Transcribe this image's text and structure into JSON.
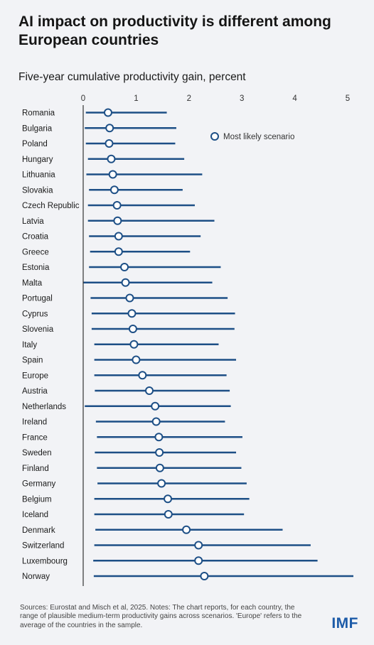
{
  "title": "AI impact on productivity is different among European countries",
  "subtitle": "Five-year cumulative productivity gain, percent",
  "footnote": "Sources: Eurostat and Misch et al, 2025. Notes: The chart reports, for each country, the range of plausible medium-term productivity gains across scenarios. 'Europe' refers to the average of the countries in the sample.",
  "logo": "IMF",
  "colors": {
    "line": "#1d4f86",
    "marker_fill": "#ffffff",
    "axis": "#333333",
    "background": "#f2f3f6"
  },
  "chart_data": {
    "type": "range-dot",
    "xlim": [
      0,
      5
    ],
    "xticks": [
      "0",
      "1",
      "2",
      "3",
      "4",
      "5"
    ],
    "legend": {
      "label": "Most likely scenario",
      "placement": "top-right"
    },
    "rows": [
      {
        "country": "Romania",
        "low": 0.05,
        "high": 1.58,
        "likely": 0.47
      },
      {
        "country": "Bulgaria",
        "low": 0.03,
        "high": 1.76,
        "likely": 0.5
      },
      {
        "country": "Poland",
        "low": 0.05,
        "high": 1.74,
        "likely": 0.49
      },
      {
        "country": "Hungary",
        "low": 0.09,
        "high": 1.91,
        "likely": 0.53
      },
      {
        "country": "Lithuania",
        "low": 0.06,
        "high": 2.25,
        "likely": 0.56
      },
      {
        "country": "Slovakia",
        "low": 0.11,
        "high": 1.88,
        "likely": 0.59
      },
      {
        "country": "Czech Republic",
        "low": 0.09,
        "high": 2.11,
        "likely": 0.64
      },
      {
        "country": "Latvia",
        "low": 0.09,
        "high": 2.48,
        "likely": 0.65
      },
      {
        "country": "Croatia",
        "low": 0.11,
        "high": 2.22,
        "likely": 0.67
      },
      {
        "country": "Greece",
        "low": 0.13,
        "high": 2.02,
        "likely": 0.67
      },
      {
        "country": "Estonia",
        "low": 0.11,
        "high": 2.6,
        "likely": 0.78
      },
      {
        "country": "Malta",
        "low": 0.0,
        "high": 2.44,
        "likely": 0.8
      },
      {
        "country": "Portugal",
        "low": 0.14,
        "high": 2.73,
        "likely": 0.88
      },
      {
        "country": "Cyprus",
        "low": 0.16,
        "high": 2.87,
        "likely": 0.92
      },
      {
        "country": "Slovenia",
        "low": 0.16,
        "high": 2.86,
        "likely": 0.94
      },
      {
        "country": "Italy",
        "low": 0.21,
        "high": 2.56,
        "likely": 0.96
      },
      {
        "country": "Spain",
        "low": 0.21,
        "high": 2.89,
        "likely": 1.0
      },
      {
        "country": "Europe",
        "low": 0.21,
        "high": 2.71,
        "likely": 1.12
      },
      {
        "country": "Austria",
        "low": 0.22,
        "high": 2.77,
        "likely": 1.25
      },
      {
        "country": "Netherlands",
        "low": 0.03,
        "high": 2.79,
        "likely": 1.36
      },
      {
        "country": "Ireland",
        "low": 0.24,
        "high": 2.68,
        "likely": 1.38
      },
      {
        "country": "France",
        "low": 0.26,
        "high": 3.01,
        "likely": 1.43
      },
      {
        "country": "Sweden",
        "low": 0.22,
        "high": 2.89,
        "likely": 1.44
      },
      {
        "country": "Finland",
        "low": 0.26,
        "high": 2.99,
        "likely": 1.45
      },
      {
        "country": "Germany",
        "low": 0.27,
        "high": 3.09,
        "likely": 1.48
      },
      {
        "country": "Belgium",
        "low": 0.21,
        "high": 3.14,
        "likely": 1.6
      },
      {
        "country": "Iceland",
        "low": 0.21,
        "high": 3.04,
        "likely": 1.61
      },
      {
        "country": "Denmark",
        "low": 0.23,
        "high": 3.77,
        "likely": 1.95
      },
      {
        "country": "Switzerland",
        "low": 0.21,
        "high": 4.3,
        "likely": 2.18
      },
      {
        "country": "Luxembourg",
        "low": 0.19,
        "high": 4.43,
        "likely": 2.18
      },
      {
        "country": "Norway",
        "low": 0.2,
        "high": 5.12,
        "likely": 2.29
      }
    ]
  }
}
